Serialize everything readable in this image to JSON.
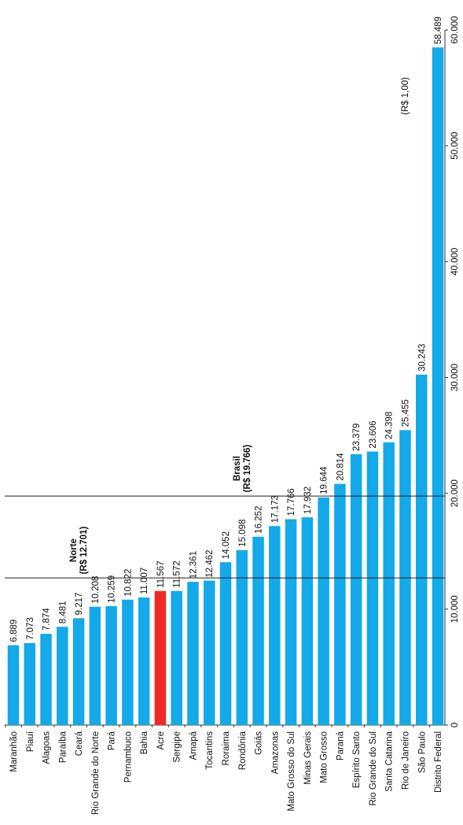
{
  "chart_data": {
    "type": "bar",
    "orientation": "horizontal (rotated 90 degrees)",
    "unit_label": "(R$ 1,00)",
    "categories": [
      "Maranhão",
      "Piauí",
      "Alagoas",
      "Paraíba",
      "Ceará",
      "Rio Grande do Norte",
      "Pará",
      "Pernambuco",
      "Bahia",
      "Acre",
      "Sergipe",
      "Amapá",
      "Tocantins",
      "Roraima",
      "Rondônia",
      "Goiás",
      "Amazonas",
      "Mato Grosso do Sul",
      "Minas Gerais",
      "Mato Grosso",
      "Paraná",
      "Espírito Santo",
      "Rio Grande do Sul",
      "Santa Catarina",
      "Rio de Janeiro",
      "São Paulo",
      "Distrito Federal"
    ],
    "values": [
      6889,
      7073,
      7874,
      8481,
      9217,
      10208,
      10259,
      10822,
      11007,
      11567,
      11572,
      12361,
      12462,
      14052,
      15098,
      16252,
      17173,
      17766,
      17932,
      19644,
      20814,
      23379,
      23606,
      24398,
      25455,
      30243,
      58489
    ],
    "value_labels": [
      "6.889",
      "7.073",
      "7.874",
      "8.481",
      "9.217",
      "10.208",
      "10.259",
      "10.822",
      "11.007",
      "11.567",
      "11.572",
      "12.361",
      "12.462",
      "14.052",
      "15.098",
      "16.252",
      "17.173",
      "17.766",
      "17.932",
      "19.644",
      "20.814",
      "23.379",
      "23.606",
      "24.398",
      "25.455",
      "30.243",
      "58.489"
    ],
    "highlight_category": "Acre",
    "highlight_color": "#ee2a24",
    "bar_color": "#14a9e8",
    "axis_range": [
      0,
      60000
    ],
    "ticks": [
      0,
      10000,
      20000,
      30000,
      40000,
      50000,
      60000
    ],
    "tick_labels": [
      "0",
      "10.000",
      "20.000",
      "30.000",
      "40.000",
      "50.000",
      "60.000"
    ],
    "reference_lines": [
      {
        "value": 12701,
        "label_line1": "Norte",
        "label_line2": "(R$ 12.701)"
      },
      {
        "value": 19766,
        "label_line1": "Brasil",
        "label_line2": "(R$ 19.766)"
      }
    ]
  }
}
